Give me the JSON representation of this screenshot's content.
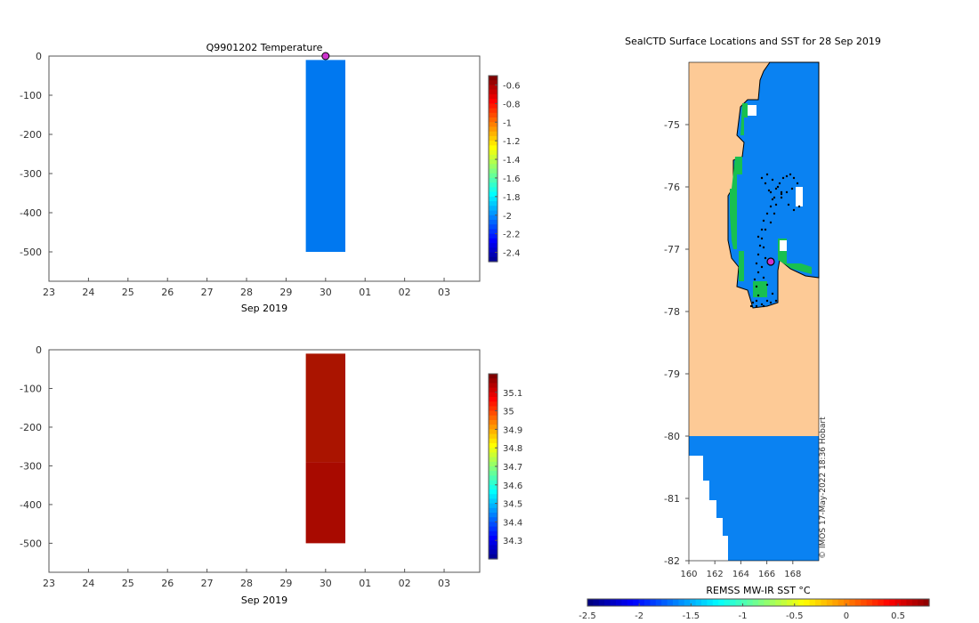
{
  "chart_data": [
    {
      "type": "heatmap",
      "title": "Q9901202  Temperature",
      "xlabel": "Sep 2019",
      "x_tick_labels": [
        "23",
        "24",
        "25",
        "26",
        "27",
        "28",
        "29",
        "30",
        "01",
        "02",
        "03"
      ],
      "y_ticks": [
        0,
        -100,
        -200,
        -300,
        -400,
        -500
      ],
      "ylim": [
        -575,
        0
      ],
      "surface_marker": {
        "day_index": 7,
        "depth": 0,
        "color": "#cc33cc"
      },
      "cells": [
        {
          "x0": 6.5,
          "x1": 7.5,
          "depth_top": -10,
          "depth_bottom": -500,
          "value": -1.9,
          "color": "#0078f0"
        }
      ],
      "colorbar": {
        "ticks": [
          "-0.6",
          "-0.8",
          "-1",
          "-1.2",
          "-1.4",
          "-1.6",
          "-1.8",
          "-2",
          "-2.2",
          "-2.4"
        ],
        "min": -2.5,
        "max": -0.5
      }
    },
    {
      "type": "heatmap",
      "title": "",
      "xlabel": "Sep 2019",
      "x_tick_labels": [
        "23",
        "24",
        "25",
        "26",
        "27",
        "28",
        "29",
        "30",
        "01",
        "02",
        "03"
      ],
      "y_ticks": [
        0,
        -100,
        -200,
        -300,
        -400,
        -500
      ],
      "ylim": [
        -575,
        0
      ],
      "cells": [
        {
          "x0": 6.5,
          "x1": 7.5,
          "depth_top": -10,
          "depth_bottom": -290,
          "value": 35.15,
          "color": "#aa1400"
        },
        {
          "x0": 6.5,
          "x1": 7.5,
          "depth_top": -290,
          "depth_bottom": -500,
          "value": 35.2,
          "color": "#a80a00"
        }
      ],
      "colorbar": {
        "ticks": [
          "35.1",
          "35",
          "34.9",
          "34.8",
          "34.7",
          "34.6",
          "34.5",
          "34.4",
          "34.3"
        ],
        "min": 34.2,
        "max": 35.2
      }
    },
    {
      "type": "map",
      "title": "SealCTD Surface Locations and SST for 28 Sep 2019",
      "x_tick_labels": [
        "160",
        "162",
        "164",
        "166",
        "168"
      ],
      "y_tick_labels": [
        "-75",
        "-76",
        "-77",
        "-78",
        "-79",
        "-80",
        "-81",
        "-82"
      ],
      "lon_range": [
        160,
        170
      ],
      "lat_range": [
        -82,
        -74
      ],
      "current_location": {
        "lon": 166.3,
        "lat": -77.2
      },
      "colorbar_label": "REMSS MW-IR SST °C",
      "colorbar_ticks": [
        "-2.5",
        "-2",
        "-1.5",
        "-1",
        "-0.5",
        "0",
        "0.5"
      ],
      "colorbar_range": [
        -2.5,
        0.8
      ],
      "credit": "© IMOS 17-May-2022 18:36 Hobart",
      "colors": {
        "land": "#fdca96",
        "sea": "#0a82f2",
        "ice_edge": "#18c050",
        "coast": "#000000"
      }
    }
  ]
}
